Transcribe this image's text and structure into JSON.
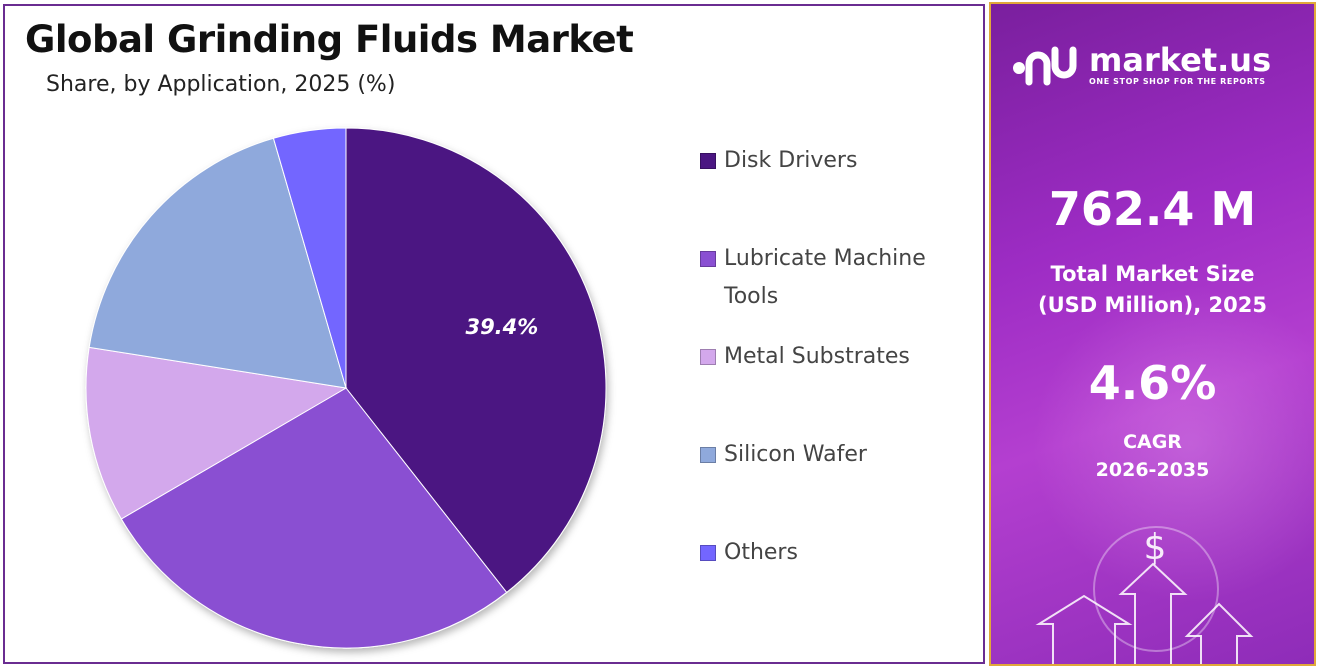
{
  "chart_data": {
    "type": "pie",
    "title": "Global Grinding Fluids Market",
    "subtitle": "Share, by Application, 2025 (%)",
    "categories": [
      "Disk Drivers",
      "Lubricate Machine Tools",
      "Metal Substrates",
      "Silicon Wafer",
      "Others"
    ],
    "values": [
      39.4,
      27.2,
      10.9,
      18.0,
      4.5
    ],
    "colors": [
      "#4b1682",
      "#8a50d2",
      "#d3a8ec",
      "#8fa9dc",
      "#7366ff"
    ],
    "data_labels": [
      "39.4%",
      "",
      "",
      "",
      ""
    ],
    "legend_position": "right"
  },
  "side_panel": {
    "brand_name": "market.us",
    "brand_tagline": "ONE STOP SHOP FOR THE REPORTS",
    "market_size_value": "762.4 M",
    "market_size_label_line1": "Total Market Size",
    "market_size_label_line2": "(USD Million), 2025",
    "cagr_value": "4.6%",
    "cagr_label_line1": "CAGR",
    "cagr_label_line2": "2026-2035",
    "currency_symbol": "$"
  }
}
